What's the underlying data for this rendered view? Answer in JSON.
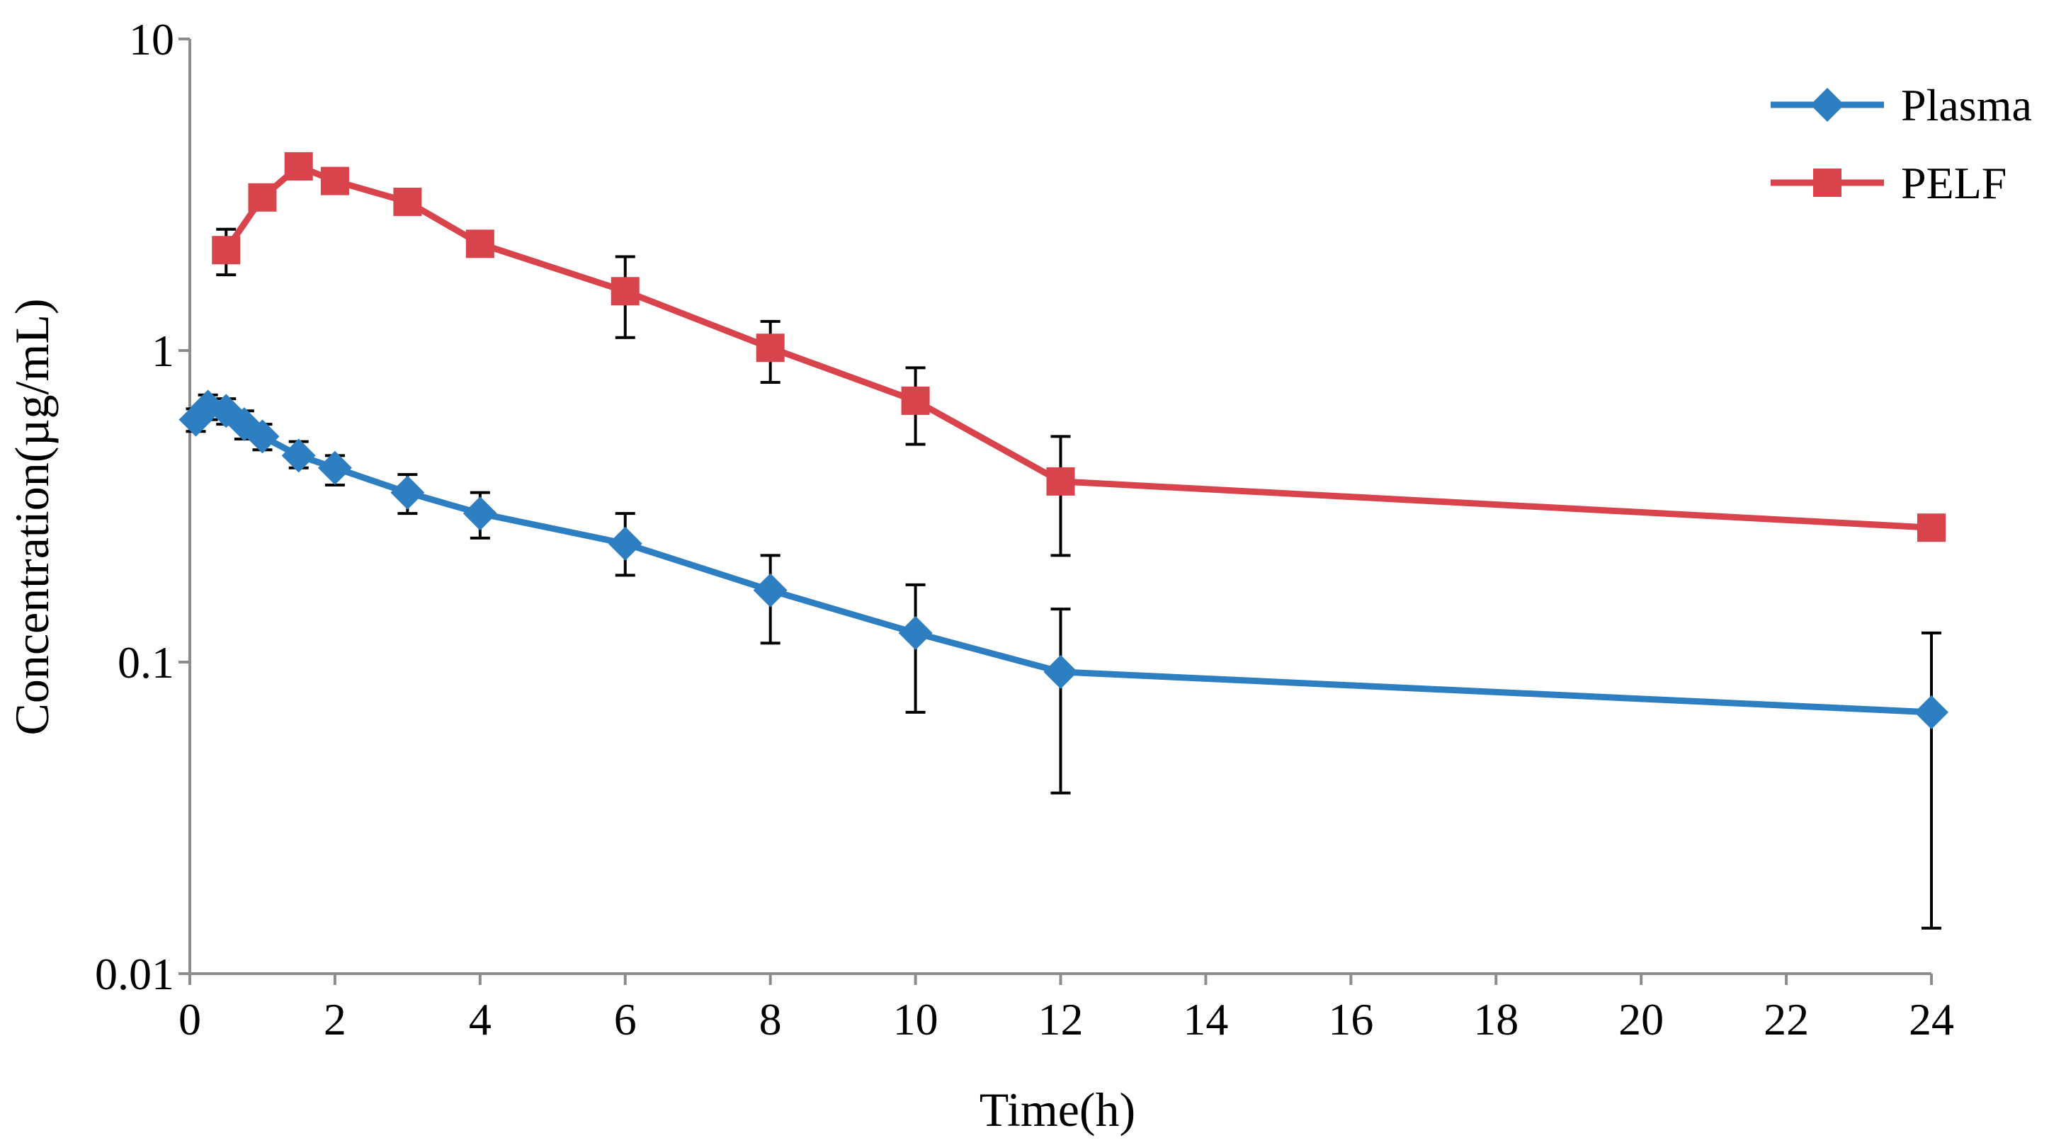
{
  "chart_data": {
    "type": "line",
    "title": "",
    "xlabel": "Time(h)",
    "ylabel": "Concentration(µg/mL)",
    "yscale": "log",
    "xlim": [
      0,
      24
    ],
    "ylim": [
      0.01,
      10
    ],
    "grid": false,
    "legend_position": "top-right",
    "xticks": [
      0,
      2,
      4,
      6,
      8,
      10,
      12,
      14,
      16,
      18,
      20,
      22,
      24
    ],
    "xtick_labels": [
      "0",
      "2",
      "4",
      "6",
      "8",
      "10",
      "12",
      "14",
      "16",
      "18",
      "20",
      "22",
      "24"
    ],
    "yticks": [
      0.01,
      0.1,
      1,
      10
    ],
    "ytick_labels": [
      "0.01",
      "0.1",
      "1",
      "10"
    ],
    "series": [
      {
        "name": "Plasma",
        "color": "#2E7FC1",
        "marker": "diamond",
        "x": [
          0.083,
          0.25,
          0.5,
          0.75,
          1,
          1.5,
          2,
          3,
          4,
          6,
          8,
          10,
          12,
          24
        ],
        "y": [
          0.6,
          0.66,
          0.64,
          0.58,
          0.53,
          0.46,
          0.42,
          0.35,
          0.3,
          0.24,
          0.17,
          0.124,
          0.093,
          0.069
        ],
        "err_low": [
          0.55,
          0.6,
          0.58,
          0.52,
          0.48,
          0.42,
          0.37,
          0.3,
          0.25,
          0.19,
          0.115,
          0.069,
          0.038,
          0.014
        ],
        "err_high": [
          0.65,
          0.72,
          0.7,
          0.64,
          0.58,
          0.51,
          0.46,
          0.4,
          0.35,
          0.3,
          0.22,
          0.177,
          0.148,
          0.124
        ]
      },
      {
        "name": "PELF",
        "color": "#D9434B",
        "marker": "square",
        "x": [
          0.5,
          1,
          1.5,
          2,
          3,
          4,
          6,
          8,
          10,
          12,
          24
        ],
        "y": [
          2.1,
          3.1,
          3.9,
          3.5,
          3.0,
          2.2,
          1.55,
          1.02,
          0.69,
          0.38,
          0.27
        ],
        "err_low": [
          1.75,
          2.95,
          3.7,
          3.35,
          2.85,
          2.05,
          1.1,
          0.79,
          0.5,
          0.22,
          0.27
        ],
        "err_high": [
          2.45,
          3.25,
          4.1,
          3.65,
          3.15,
          2.35,
          2.0,
          1.24,
          0.88,
          0.53,
          0.27
        ]
      }
    ]
  }
}
